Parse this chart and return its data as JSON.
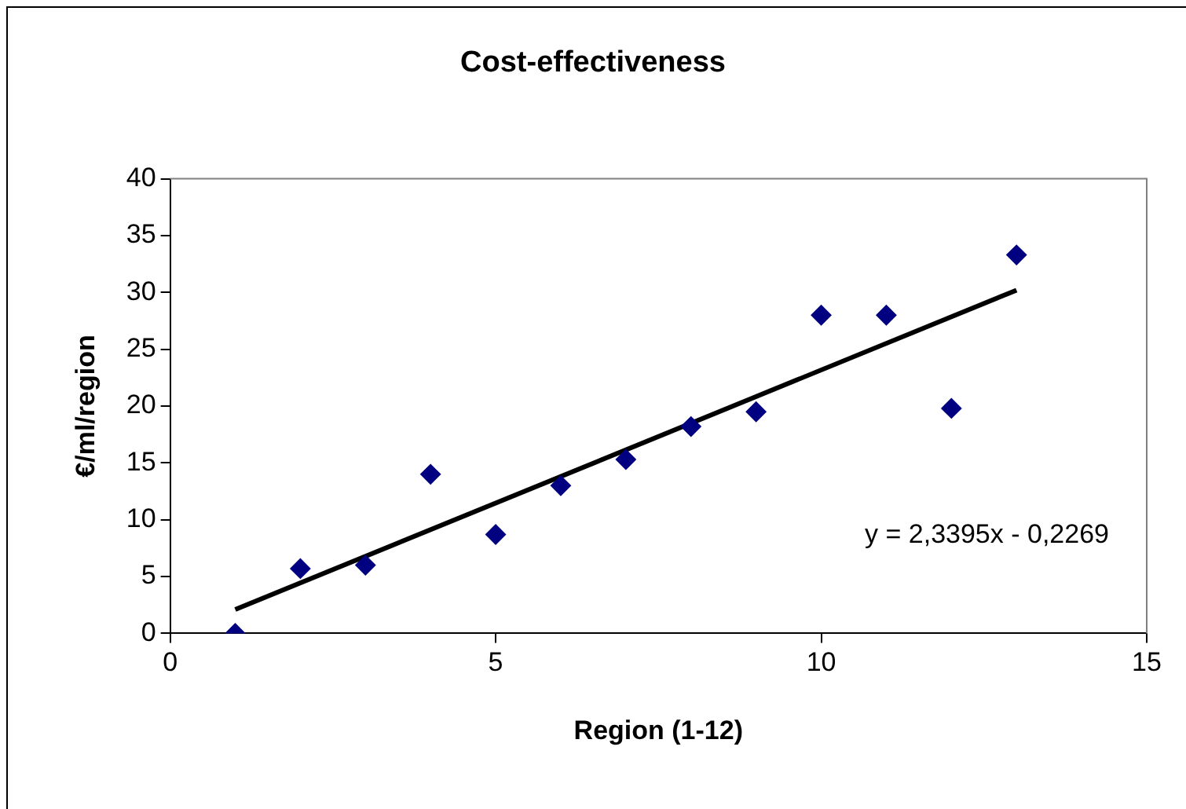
{
  "chart_data": {
    "type": "scatter",
    "title": "Cost-effectiveness",
    "xlabel": "Region (1-12)",
    "ylabel": "€/ml/region",
    "xlim": [
      0,
      15
    ],
    "xticks": [
      0,
      5,
      10,
      15
    ],
    "ylim": [
      0,
      40
    ],
    "yticks": [
      0,
      5,
      10,
      15,
      20,
      25,
      30,
      35,
      40
    ],
    "grid": false,
    "legend": false,
    "marker": "diamond",
    "annotations": [
      "y = 2,3395x - 0,2269"
    ],
    "series": [
      {
        "type": "scatter",
        "color": "#000080",
        "x": [
          1,
          2,
          3,
          4,
          5,
          6,
          7,
          8,
          9,
          10,
          11,
          12,
          13
        ],
        "values": [
          0,
          5.7,
          6,
          14,
          8.7,
          13,
          15.3,
          18.2,
          19.5,
          28,
          28,
          19.8,
          33.3
        ]
      },
      {
        "type": "line",
        "color": "#000000",
        "marker": "none",
        "x": [
          1,
          13
        ],
        "values": [
          2.1,
          30.2
        ]
      }
    ]
  }
}
